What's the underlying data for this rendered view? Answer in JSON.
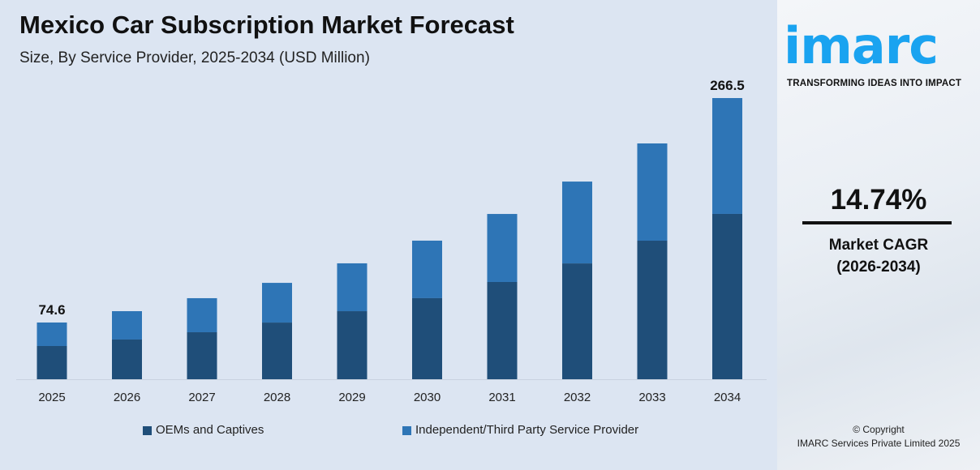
{
  "chart_data": {
    "type": "bar",
    "stacked": true,
    "title": "Mexico Car Subscription Market Forecast",
    "subtitle": "Size, By Service Provider, 2025-2034 (USD Million)",
    "categories": [
      "2025",
      "2026",
      "2027",
      "2028",
      "2029",
      "2030",
      "2031",
      "2032",
      "2033",
      "2034"
    ],
    "series": [
      {
        "name": "OEMs and Captives",
        "color": "#1f4e79",
        "values": [
          43.7,
          49.2,
          55.3,
          63.8,
          73.5,
          84.6,
          98.5,
          114.3,
          133.8,
          156.7
        ]
      },
      {
        "name": "Independent/Third Party Service Provider",
        "color": "#2e75b6",
        "values": [
          30.9,
          35.1,
          40.1,
          44.7,
          51.7,
          60.0,
          68.9,
          80.8,
          93.9,
          109.8
        ]
      }
    ],
    "data_labels": [
      {
        "category": "2025",
        "text": "74.6"
      },
      {
        "category": "2034",
        "text": "266.5"
      }
    ],
    "legend_position": "bottom",
    "grid": false
  },
  "brand": {
    "logo": "imarc",
    "tagline": "TRANSFORMING IDEAS INTO IMPACT",
    "color": "#1aa3f0"
  },
  "cagr": {
    "value": "14.74%",
    "label_line1": "Market CAGR",
    "label_line2": "(2026-2034)"
  },
  "copyright": {
    "line1": "© Copyright",
    "line2": "IMARC Services Private Limited 2025"
  }
}
